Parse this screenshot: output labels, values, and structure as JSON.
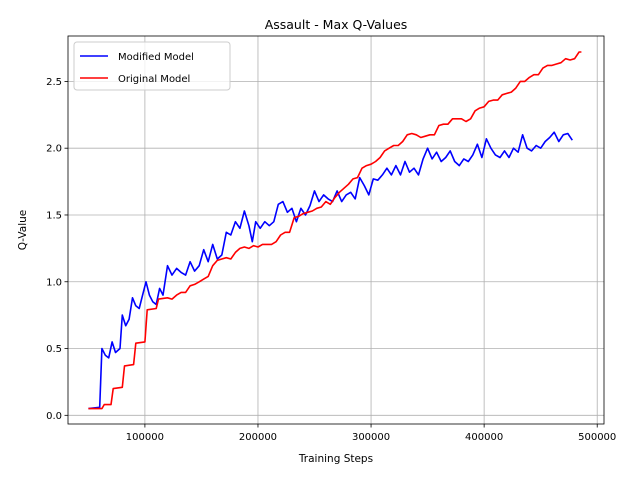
{
  "chart_data": {
    "type": "line",
    "title": "Assault - Max Q-Values",
    "xlabel": "Training Steps",
    "ylabel": "Q-Value",
    "xlim": [
      32000,
      506000
    ],
    "ylim": [
      -0.065,
      2.84
    ],
    "xticks": [
      100000,
      200000,
      300000,
      400000,
      500000
    ],
    "xtick_labels": [
      "100000",
      "200000",
      "300000",
      "400000",
      "500000"
    ],
    "yticks": [
      0.0,
      0.5,
      1.0,
      1.5,
      2.0,
      2.5
    ],
    "ytick_labels": [
      "0.0",
      "0.5",
      "1.0",
      "1.5",
      "2.0",
      "2.5"
    ],
    "grid": true,
    "legend_position": "top-left",
    "series": [
      {
        "name": "Modified Model",
        "color": "#0000ff",
        "points": [
          [
            50000,
            0.05
          ],
          [
            60000,
            0.06
          ],
          [
            62000,
            0.5
          ],
          [
            65000,
            0.45
          ],
          [
            68000,
            0.43
          ],
          [
            71000,
            0.55
          ],
          [
            74000,
            0.47
          ],
          [
            78000,
            0.5
          ],
          [
            80000,
            0.75
          ],
          [
            83000,
            0.67
          ],
          [
            86000,
            0.72
          ],
          [
            89000,
            0.88
          ],
          [
            92000,
            0.82
          ],
          [
            95000,
            0.8
          ],
          [
            98000,
            0.9
          ],
          [
            101000,
            1.0
          ],
          [
            104000,
            0.9
          ],
          [
            107000,
            0.85
          ],
          [
            110000,
            0.83
          ],
          [
            113000,
            0.95
          ],
          [
            116000,
            0.9
          ],
          [
            120000,
            1.12
          ],
          [
            124000,
            1.05
          ],
          [
            128000,
            1.1
          ],
          [
            132000,
            1.07
          ],
          [
            136000,
            1.05
          ],
          [
            140000,
            1.15
          ],
          [
            144000,
            1.08
          ],
          [
            148000,
            1.12
          ],
          [
            152000,
            1.24
          ],
          [
            156000,
            1.15
          ],
          [
            160000,
            1.28
          ],
          [
            164000,
            1.17
          ],
          [
            168000,
            1.2
          ],
          [
            172000,
            1.37
          ],
          [
            176000,
            1.35
          ],
          [
            180000,
            1.45
          ],
          [
            184000,
            1.4
          ],
          [
            188000,
            1.53
          ],
          [
            192000,
            1.42
          ],
          [
            195000,
            1.3
          ],
          [
            198000,
            1.45
          ],
          [
            202000,
            1.4
          ],
          [
            206000,
            1.45
          ],
          [
            210000,
            1.42
          ],
          [
            214000,
            1.45
          ],
          [
            218000,
            1.58
          ],
          [
            222000,
            1.6
          ],
          [
            226000,
            1.52
          ],
          [
            230000,
            1.55
          ],
          [
            234000,
            1.45
          ],
          [
            238000,
            1.55
          ],
          [
            242000,
            1.5
          ],
          [
            246000,
            1.57
          ],
          [
            250000,
            1.68
          ],
          [
            254000,
            1.6
          ],
          [
            258000,
            1.65
          ],
          [
            262000,
            1.62
          ],
          [
            266000,
            1.6
          ],
          [
            270000,
            1.68
          ],
          [
            274000,
            1.6
          ],
          [
            278000,
            1.65
          ],
          [
            282000,
            1.67
          ],
          [
            286000,
            1.62
          ],
          [
            290000,
            1.78
          ],
          [
            294000,
            1.72
          ],
          [
            298000,
            1.65
          ],
          [
            302000,
            1.77
          ],
          [
            306000,
            1.76
          ],
          [
            310000,
            1.8
          ],
          [
            314000,
            1.85
          ],
          [
            318000,
            1.8
          ],
          [
            322000,
            1.87
          ],
          [
            326000,
            1.8
          ],
          [
            330000,
            1.9
          ],
          [
            334000,
            1.82
          ],
          [
            338000,
            1.85
          ],
          [
            342000,
            1.8
          ],
          [
            346000,
            1.92
          ],
          [
            350000,
            2.0
          ],
          [
            354000,
            1.92
          ],
          [
            358000,
            1.97
          ],
          [
            362000,
            1.9
          ],
          [
            366000,
            1.93
          ],
          [
            370000,
            1.98
          ],
          [
            374000,
            1.9
          ],
          [
            378000,
            1.87
          ],
          [
            382000,
            1.92
          ],
          [
            386000,
            1.9
          ],
          [
            390000,
            1.95
          ],
          [
            394000,
            2.03
          ],
          [
            398000,
            1.93
          ],
          [
            402000,
            2.07
          ],
          [
            406000,
            2.0
          ],
          [
            410000,
            1.95
          ],
          [
            414000,
            1.93
          ],
          [
            418000,
            1.98
          ],
          [
            422000,
            1.93
          ],
          [
            426000,
            2.0
          ],
          [
            430000,
            1.97
          ],
          [
            434000,
            2.1
          ],
          [
            438000,
            2.0
          ],
          [
            442000,
            1.98
          ],
          [
            446000,
            2.02
          ],
          [
            450000,
            2.0
          ],
          [
            454000,
            2.05
          ],
          [
            458000,
            2.08
          ],
          [
            462000,
            2.12
          ],
          [
            466000,
            2.05
          ],
          [
            470000,
            2.1
          ],
          [
            474000,
            2.11
          ],
          [
            478000,
            2.06
          ]
        ]
      },
      {
        "name": "Original Model",
        "color": "#ff0000",
        "points": [
          [
            50000,
            0.05
          ],
          [
            62000,
            0.05
          ],
          [
            64000,
            0.08
          ],
          [
            70000,
            0.08
          ],
          [
            72000,
            0.2
          ],
          [
            80000,
            0.21
          ],
          [
            82000,
            0.37
          ],
          [
            90000,
            0.38
          ],
          [
            92000,
            0.54
          ],
          [
            100000,
            0.55
          ],
          [
            102000,
            0.79
          ],
          [
            110000,
            0.8
          ],
          [
            112000,
            0.87
          ],
          [
            120000,
            0.88
          ],
          [
            124000,
            0.87
          ],
          [
            128000,
            0.9
          ],
          [
            132000,
            0.92
          ],
          [
            136000,
            0.92
          ],
          [
            140000,
            0.97
          ],
          [
            144000,
            0.98
          ],
          [
            148000,
            1.0
          ],
          [
            152000,
            1.02
          ],
          [
            156000,
            1.04
          ],
          [
            160000,
            1.12
          ],
          [
            164000,
            1.16
          ],
          [
            168000,
            1.17
          ],
          [
            172000,
            1.18
          ],
          [
            176000,
            1.17
          ],
          [
            180000,
            1.22
          ],
          [
            184000,
            1.25
          ],
          [
            188000,
            1.26
          ],
          [
            192000,
            1.25
          ],
          [
            196000,
            1.27
          ],
          [
            200000,
            1.26
          ],
          [
            204000,
            1.28
          ],
          [
            208000,
            1.28
          ],
          [
            212000,
            1.28
          ],
          [
            216000,
            1.3
          ],
          [
            220000,
            1.35
          ],
          [
            224000,
            1.37
          ],
          [
            228000,
            1.37
          ],
          [
            232000,
            1.48
          ],
          [
            236000,
            1.49
          ],
          [
            240000,
            1.51
          ],
          [
            244000,
            1.52
          ],
          [
            248000,
            1.53
          ],
          [
            252000,
            1.55
          ],
          [
            256000,
            1.56
          ],
          [
            260000,
            1.6
          ],
          [
            264000,
            1.58
          ],
          [
            268000,
            1.63
          ],
          [
            272000,
            1.67
          ],
          [
            276000,
            1.7
          ],
          [
            280000,
            1.73
          ],
          [
            284000,
            1.77
          ],
          [
            288000,
            1.78
          ],
          [
            292000,
            1.85
          ],
          [
            296000,
            1.87
          ],
          [
            300000,
            1.88
          ],
          [
            304000,
            1.9
          ],
          [
            308000,
            1.93
          ],
          [
            312000,
            1.98
          ],
          [
            316000,
            2.0
          ],
          [
            320000,
            2.02
          ],
          [
            324000,
            2.02
          ],
          [
            328000,
            2.05
          ],
          [
            332000,
            2.1
          ],
          [
            336000,
            2.11
          ],
          [
            340000,
            2.1
          ],
          [
            344000,
            2.08
          ],
          [
            348000,
            2.09
          ],
          [
            352000,
            2.1
          ],
          [
            356000,
            2.1
          ],
          [
            360000,
            2.17
          ],
          [
            364000,
            2.18
          ],
          [
            368000,
            2.18
          ],
          [
            372000,
            2.22
          ],
          [
            376000,
            2.22
          ],
          [
            380000,
            2.22
          ],
          [
            384000,
            2.2
          ],
          [
            388000,
            2.22
          ],
          [
            392000,
            2.28
          ],
          [
            396000,
            2.3
          ],
          [
            400000,
            2.31
          ],
          [
            404000,
            2.35
          ],
          [
            408000,
            2.36
          ],
          [
            412000,
            2.36
          ],
          [
            416000,
            2.4
          ],
          [
            420000,
            2.41
          ],
          [
            424000,
            2.42
          ],
          [
            428000,
            2.45
          ],
          [
            432000,
            2.5
          ],
          [
            436000,
            2.5
          ],
          [
            440000,
            2.53
          ],
          [
            444000,
            2.55
          ],
          [
            448000,
            2.55
          ],
          [
            452000,
            2.6
          ],
          [
            456000,
            2.62
          ],
          [
            460000,
            2.62
          ],
          [
            464000,
            2.63
          ],
          [
            468000,
            2.64
          ],
          [
            472000,
            2.67
          ],
          [
            476000,
            2.66
          ],
          [
            480000,
            2.67
          ],
          [
            484000,
            2.72
          ],
          [
            486000,
            2.72
          ]
        ]
      }
    ]
  }
}
